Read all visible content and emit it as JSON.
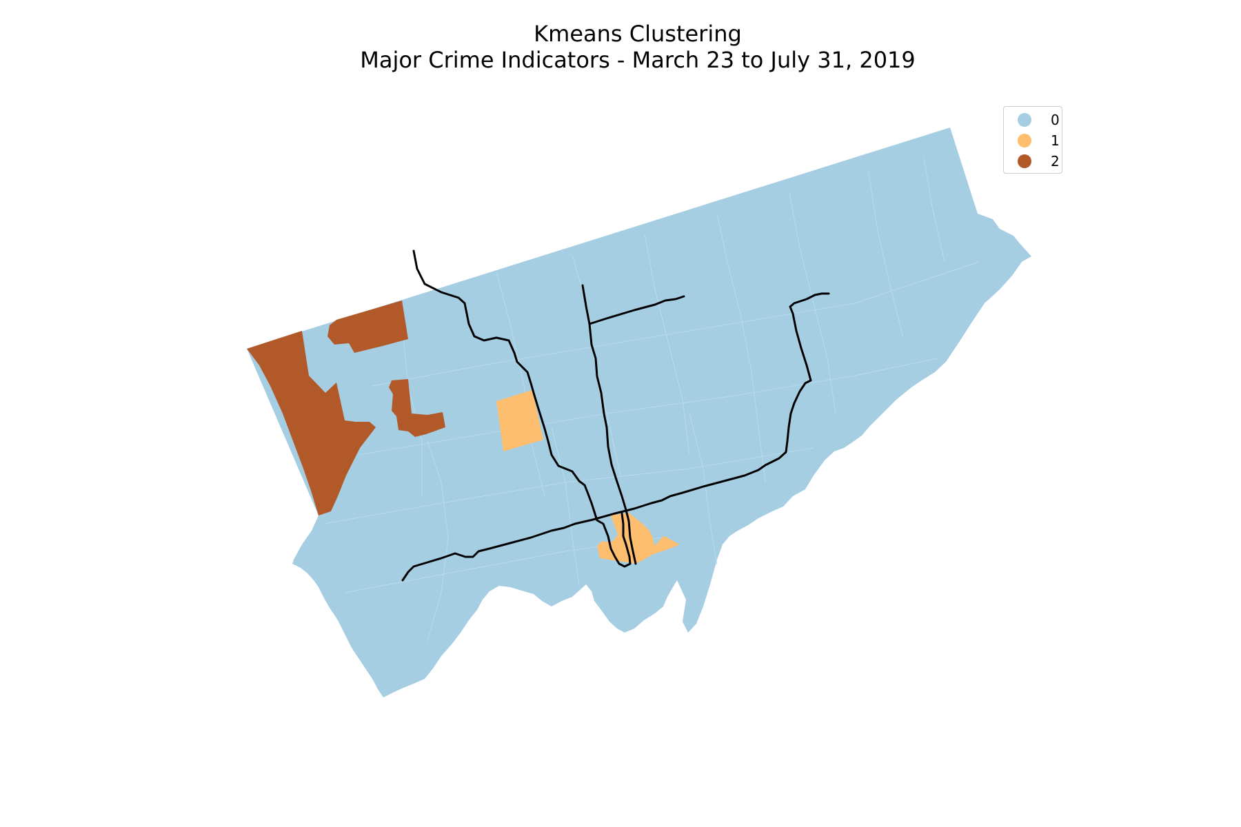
{
  "title": {
    "line1": "Kmeans Clustering",
    "line2": "Major Crime Indicators - March 23 to July 31, 2019"
  },
  "colors": {
    "cluster_0": "#a6cee3",
    "cluster_1": "#fdbf6f",
    "cluster_2": "#b15928",
    "subway": "#000000",
    "background": "#ffffff"
  },
  "legend": {
    "items": [
      {
        "label": "0",
        "color": "#a6cee3"
      },
      {
        "label": "1",
        "color": "#fdbf6f"
      },
      {
        "label": "2",
        "color": "#b15928"
      }
    ]
  }
}
